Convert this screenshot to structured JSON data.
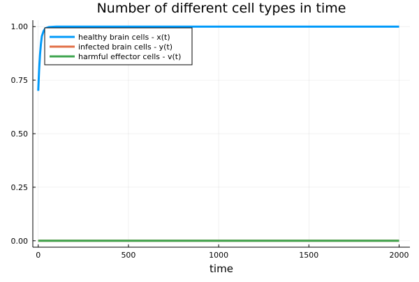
{
  "chart_data": {
    "type": "line",
    "title": "Number of different cell types in time",
    "xlabel": "time",
    "ylabel": "",
    "xlim": [
      -30,
      2060
    ],
    "ylim": [
      -0.03,
      1.03
    ],
    "xticks": [
      0,
      500,
      1000,
      1500,
      2000
    ],
    "xtick_labels": [
      "0",
      "500",
      "1000",
      "1500",
      "2000"
    ],
    "yticks": [
      0.0,
      0.25,
      0.5,
      0.75,
      1.0
    ],
    "ytick_labels": [
      "0.00",
      "0.25",
      "0.50",
      "0.75",
      "1.00"
    ],
    "grid": true,
    "legend_position": "top-left",
    "series": [
      {
        "name": "healthy brain cells - x(t)",
        "color": "#009AFA",
        "points": [
          [
            0,
            0.7
          ],
          [
            5,
            0.8
          ],
          [
            10,
            0.87
          ],
          [
            15,
            0.92
          ],
          [
            20,
            0.955
          ],
          [
            30,
            0.98
          ],
          [
            40,
            0.992
          ],
          [
            60,
            0.998
          ],
          [
            100,
            1.0
          ],
          [
            2000,
            1.0
          ]
        ]
      },
      {
        "name": "infected brain cells - y(t)",
        "color": "#E26F46",
        "points": [
          [
            0,
            0.0
          ],
          [
            2000,
            0.0
          ]
        ]
      },
      {
        "name": "harmful effector cells - v(t)",
        "color": "#3EA44E",
        "points": [
          [
            0,
            0.0
          ],
          [
            2000,
            0.0
          ]
        ]
      }
    ]
  }
}
